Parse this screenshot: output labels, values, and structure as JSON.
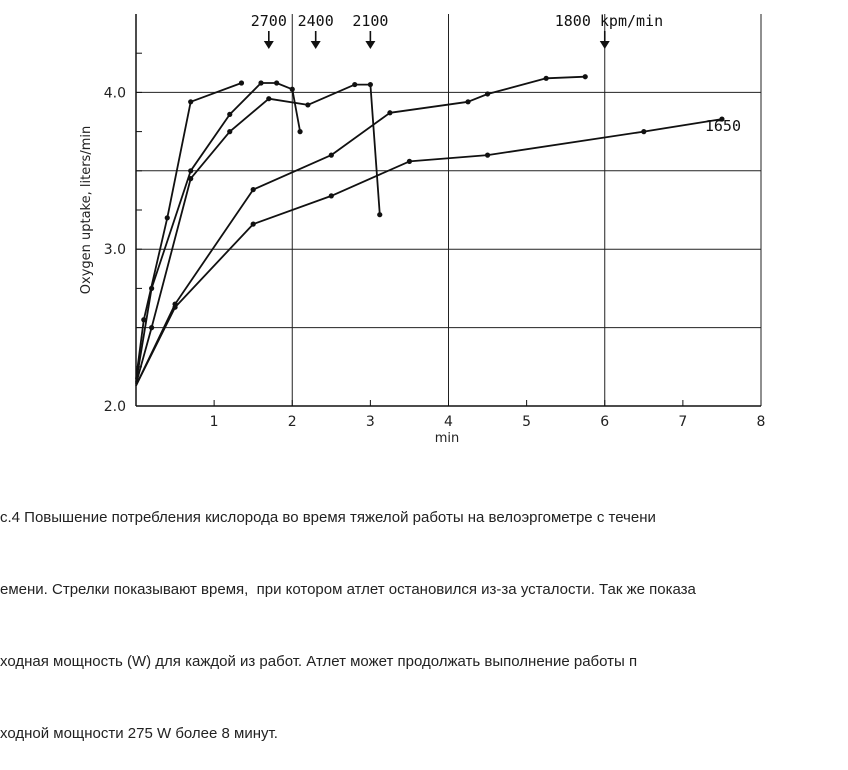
{
  "chart_data": {
    "type": "line",
    "title": "",
    "xlabel": "min",
    "ylabel": "Oxygen uptake, liters/min",
    "xlim": [
      0,
      8
    ],
    "ylim": [
      2.0,
      4.5
    ],
    "x_ticks": [
      "1",
      "2",
      "3",
      "4",
      "5",
      "6",
      "7",
      "8"
    ],
    "y_ticks": [
      "2.0",
      "3.0",
      "4.0"
    ],
    "grid": true,
    "series": [
      {
        "name": "2700",
        "points": [
          [
            0,
            2.17
          ],
          [
            0.1,
            2.55
          ],
          [
            0.4,
            3.2
          ],
          [
            0.7,
            3.94
          ],
          [
            1.35,
            4.06
          ]
        ]
      },
      {
        "name": "2400",
        "points": [
          [
            0,
            2.15
          ],
          [
            0.2,
            2.75
          ],
          [
            0.7,
            3.5
          ],
          [
            1.2,
            3.86
          ],
          [
            1.6,
            4.06
          ],
          [
            1.8,
            4.06
          ],
          [
            2.0,
            4.02
          ],
          [
            2.1,
            3.75
          ]
        ]
      },
      {
        "name": "2100",
        "points": [
          [
            0,
            2.14
          ],
          [
            0.2,
            2.5
          ],
          [
            0.7,
            3.45
          ],
          [
            1.2,
            3.75
          ],
          [
            1.7,
            3.96
          ],
          [
            2.2,
            3.92
          ],
          [
            2.8,
            4.05
          ],
          [
            3.0,
            4.05
          ],
          [
            3.12,
            3.22
          ]
        ]
      },
      {
        "name": "1800",
        "points": [
          [
            0,
            2.13
          ],
          [
            0.5,
            2.65
          ],
          [
            1.5,
            3.38
          ],
          [
            2.5,
            3.6
          ],
          [
            3.25,
            3.87
          ],
          [
            4.25,
            3.94
          ],
          [
            4.5,
            3.99
          ],
          [
            5.25,
            4.09
          ],
          [
            5.75,
            4.1
          ]
        ]
      },
      {
        "name": "1650",
        "points": [
          [
            0,
            2.13
          ],
          [
            0.5,
            2.63
          ],
          [
            1.5,
            3.16
          ],
          [
            2.5,
            3.34
          ],
          [
            3.5,
            3.56
          ],
          [
            4.5,
            3.6
          ],
          [
            6.5,
            3.75
          ],
          [
            7.5,
            3.83
          ]
        ]
      }
    ],
    "annotations": [
      {
        "text": "2700",
        "x": 1.7,
        "arrow": true
      },
      {
        "text": "2400",
        "x": 2.3,
        "arrow": true
      },
      {
        "text": "2100",
        "x": 3.0,
        "arrow": true
      },
      {
        "text": "1800 kpm/min",
        "x": 6.0,
        "arrow": true
      },
      {
        "text": "1650",
        "x": 7.5,
        "arrow": false
      }
    ]
  },
  "caption": {
    "lines": [
      "с.4 Повышение потребления кислорода во время тяжелой работы на велоэргометре с течени",
      "емени. Стрелки показывают время,  при котором атлет остановился из-за усталости. Так же показа",
      "ходная мощность (W) для каждой из работ. Атлет может продолжать выполнение работы п",
      "ходной мощности 275 W более 8 минут."
    ]
  }
}
